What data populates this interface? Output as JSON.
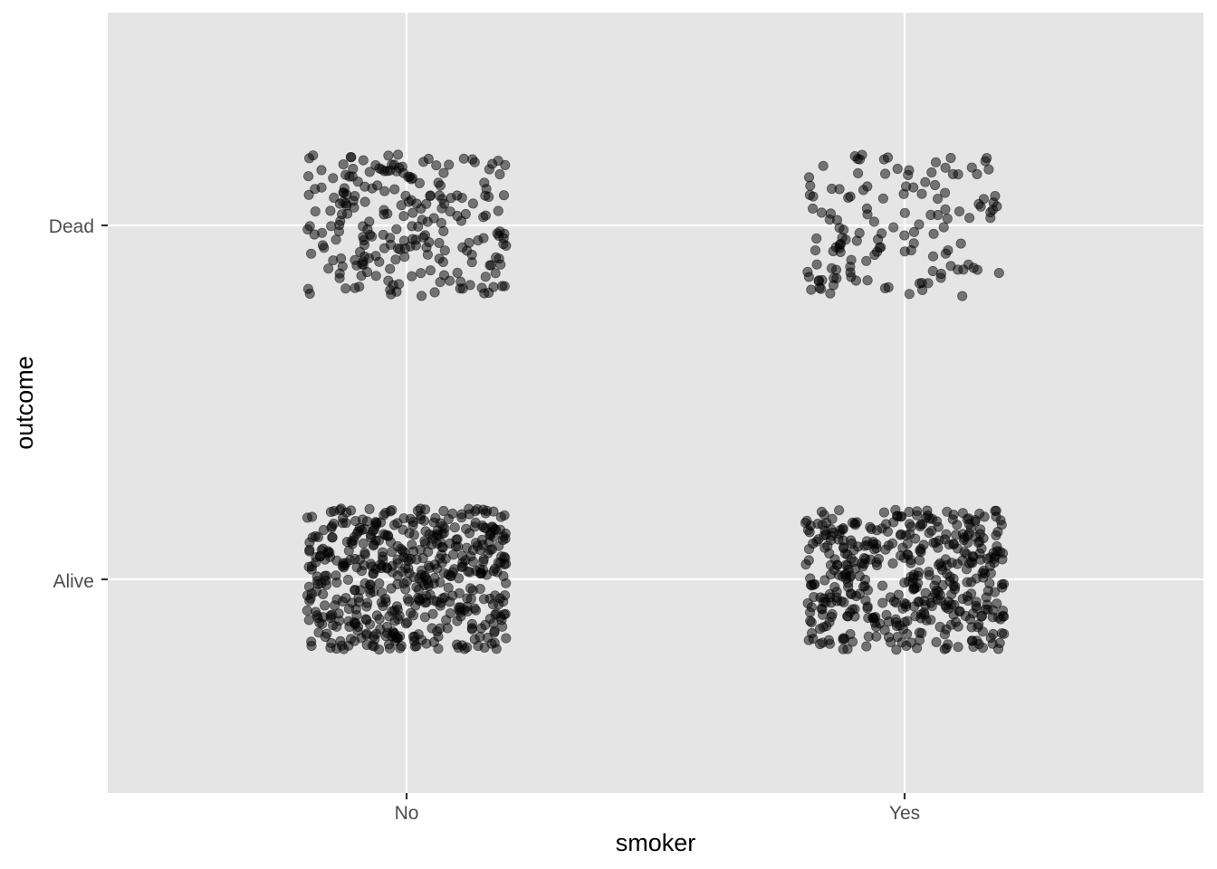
{
  "chart_data": {
    "type": "scatter",
    "title": "",
    "xlabel": "smoker",
    "ylabel": "outcome",
    "x_categories": [
      "No",
      "Yes"
    ],
    "y_categories": [
      "Alive",
      "Dead"
    ],
    "jitter": 0.4,
    "grid": true,
    "legend": "none",
    "point_color": "#000000",
    "point_alpha": 0.5,
    "panel_background": "#e5e5e5",
    "grid_color": "#ffffff",
    "groups": [
      {
        "smoker": "No",
        "outcome": "Alive",
        "count": 502
      },
      {
        "smoker": "Yes",
        "outcome": "Alive",
        "count": 443
      },
      {
        "smoker": "No",
        "outcome": "Dead",
        "count": 230
      },
      {
        "smoker": "Yes",
        "outcome": "Dead",
        "count": 139
      }
    ]
  }
}
